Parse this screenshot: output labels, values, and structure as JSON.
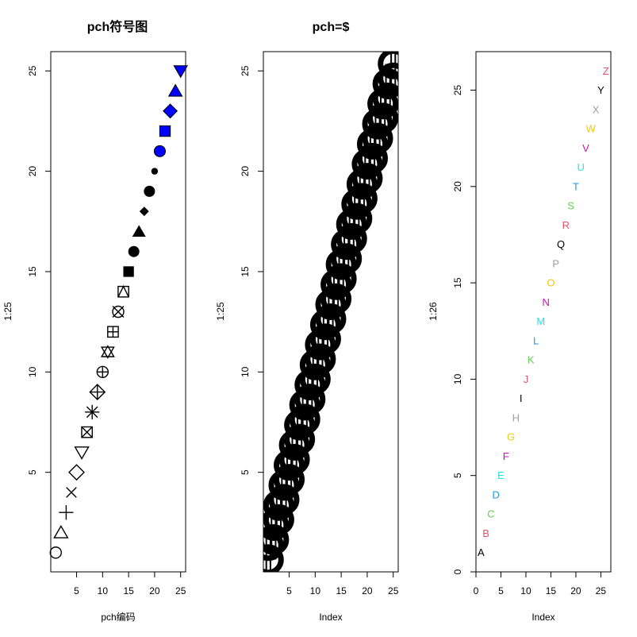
{
  "chart_data": [
    {
      "type": "scatter",
      "title": "pch符号图",
      "xlabel": "pch编码",
      "ylabel": "1:25",
      "xlim": [
        0.04,
        25.96
      ],
      "ylim": [
        0.04,
        25.96
      ],
      "x_ticks": [
        5,
        10,
        15,
        20,
        25
      ],
      "y_ticks": [
        5,
        10,
        15,
        20,
        25
      ],
      "grid": false,
      "points": {
        "x": [
          1,
          2,
          3,
          4,
          5,
          6,
          7,
          8,
          9,
          10,
          11,
          12,
          13,
          14,
          15,
          16,
          17,
          18,
          19,
          20,
          21,
          22,
          23,
          24,
          25
        ],
        "y": [
          1,
          2,
          3,
          4,
          5,
          6,
          7,
          8,
          9,
          10,
          11,
          12,
          13,
          14,
          15,
          16,
          17,
          18,
          19,
          20,
          21,
          22,
          23,
          24,
          25
        ],
        "pch": [
          1,
          2,
          3,
          4,
          5,
          6,
          7,
          8,
          9,
          10,
          11,
          12,
          13,
          14,
          15,
          16,
          17,
          18,
          19,
          20,
          21,
          22,
          23,
          24,
          25
        ],
        "colors": {
          "outline": "#000000",
          "fill": "#0000ff"
        }
      }
    },
    {
      "type": "scatter",
      "title": "pch=$",
      "xlabel": "Index",
      "ylabel": "1:25",
      "xlim": [
        0.04,
        25.96
      ],
      "ylim": [
        0.04,
        25.96
      ],
      "x_ticks": [
        5,
        10,
        15,
        20,
        25
      ],
      "y_ticks": [
        5,
        10,
        15,
        20,
        25
      ],
      "grid": false,
      "points": {
        "x": [
          1,
          2,
          3,
          4,
          5,
          6,
          7,
          8,
          9,
          10,
          11,
          12,
          13,
          14,
          15,
          16,
          17,
          18,
          19,
          20,
          21,
          22,
          23,
          24,
          25
        ],
        "y": [
          1,
          2,
          3,
          4,
          5,
          6,
          7,
          8,
          9,
          10,
          11,
          12,
          13,
          14,
          15,
          16,
          17,
          18,
          19,
          20,
          21,
          22,
          23,
          24,
          25
        ],
        "symbol": "$",
        "color": "#000000"
      }
    },
    {
      "type": "scatter",
      "title": "",
      "xlabel": "Index",
      "ylabel": "1:26",
      "xlim": [
        0,
        27
      ],
      "ylim": [
        0,
        27
      ],
      "x_ticks": [
        0,
        5,
        10,
        15,
        20,
        25
      ],
      "y_ticks": [
        0,
        5,
        10,
        15,
        20,
        25
      ],
      "grid": false,
      "points": {
        "x": [
          1,
          2,
          3,
          4,
          5,
          6,
          7,
          8,
          9,
          10,
          11,
          12,
          13,
          14,
          15,
          16,
          17,
          18,
          19,
          20,
          21,
          22,
          23,
          24,
          25,
          26
        ],
        "y": [
          1,
          2,
          3,
          4,
          5,
          6,
          7,
          8,
          9,
          10,
          11,
          12,
          13,
          14,
          15,
          16,
          17,
          18,
          19,
          20,
          21,
          22,
          23,
          24,
          25,
          26
        ],
        "labels": [
          "A",
          "B",
          "C",
          "D",
          "E",
          "F",
          "G",
          "H",
          "I",
          "J",
          "K",
          "L",
          "M",
          "N",
          "O",
          "P",
          "Q",
          "R",
          "S",
          "T",
          "U",
          "V",
          "W",
          "X",
          "Y",
          "Z"
        ],
        "palette": [
          "#000000",
          "#df536b",
          "#61d04f",
          "#2297e6",
          "#28e2e5",
          "#cd0bbc",
          "#f5c710",
          "#9e9e9e"
        ]
      }
    }
  ]
}
